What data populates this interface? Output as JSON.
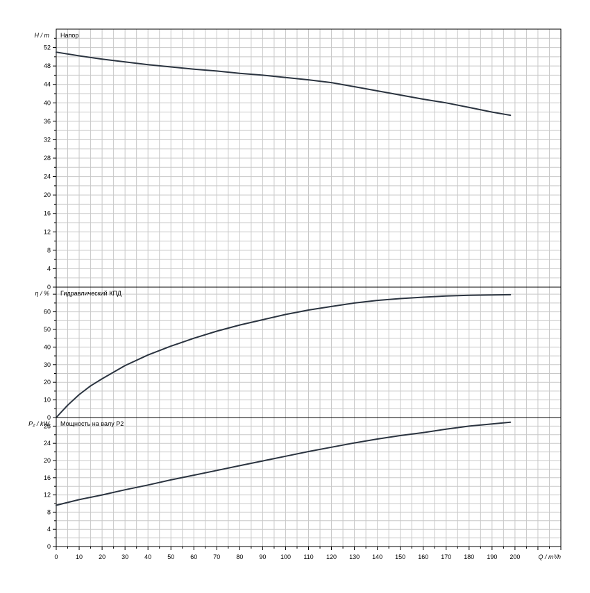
{
  "chart_data": [
    {
      "type": "line",
      "title": "Напор",
      "ylabel": "H / m",
      "ylim": [
        0,
        56
      ],
      "yticks": [
        0,
        4,
        8,
        12,
        16,
        20,
        24,
        28,
        32,
        36,
        40,
        44,
        48,
        52
      ],
      "xlim": [
        0,
        220
      ],
      "grid": true,
      "color": "#2b3440",
      "x": [
        0,
        10,
        20,
        30,
        40,
        50,
        60,
        70,
        80,
        90,
        100,
        110,
        120,
        130,
        140,
        150,
        160,
        170,
        180,
        190,
        198
      ],
      "y": [
        51.0,
        50.2,
        49.5,
        48.9,
        48.3,
        47.8,
        47.3,
        46.9,
        46.4,
        46.0,
        45.5,
        45.0,
        44.4,
        43.5,
        42.6,
        41.7,
        40.8,
        40.0,
        39.0,
        38.0,
        37.3
      ]
    },
    {
      "type": "line",
      "title": "Гидравлический КПД",
      "ylabel": "η / %",
      "ylim": [
        0,
        74
      ],
      "yticks": [
        0,
        10,
        20,
        30,
        40,
        50,
        60
      ],
      "xlim": [
        0,
        220
      ],
      "grid": true,
      "color": "#2b3440",
      "x": [
        0,
        5,
        10,
        15,
        20,
        30,
        40,
        50,
        60,
        70,
        80,
        90,
        100,
        110,
        120,
        130,
        140,
        150,
        160,
        170,
        180,
        190,
        198
      ],
      "y": [
        0,
        7,
        13,
        18,
        22,
        29.5,
        35.5,
        40.5,
        45,
        49,
        52.5,
        55.5,
        58.5,
        61,
        63,
        65,
        66.5,
        67.5,
        68.3,
        69,
        69.4,
        69.6,
        69.7
      ]
    },
    {
      "type": "line",
      "title": "Мощность на валу P2",
      "ylabel": "P₂ / kW",
      "ylim": [
        0,
        30
      ],
      "yticks": [
        0,
        4,
        8,
        12,
        16,
        20,
        24,
        28
      ],
      "xlabel": "Q / m³/h",
      "xlim": [
        0,
        220
      ],
      "xticks": [
        0,
        10,
        20,
        30,
        40,
        50,
        60,
        70,
        80,
        90,
        100,
        110,
        120,
        130,
        140,
        150,
        160,
        170,
        180,
        190,
        200
      ],
      "grid": true,
      "color": "#2b3440",
      "x": [
        0,
        10,
        20,
        30,
        40,
        50,
        60,
        70,
        80,
        90,
        100,
        110,
        120,
        130,
        140,
        150,
        160,
        170,
        180,
        190,
        198
      ],
      "y": [
        9.6,
        10.9,
        12.0,
        13.2,
        14.3,
        15.5,
        16.6,
        17.7,
        18.8,
        19.9,
        21.0,
        22.1,
        23.1,
        24.1,
        25.0,
        25.8,
        26.5,
        27.3,
        28.0,
        28.5,
        28.9
      ]
    }
  ]
}
